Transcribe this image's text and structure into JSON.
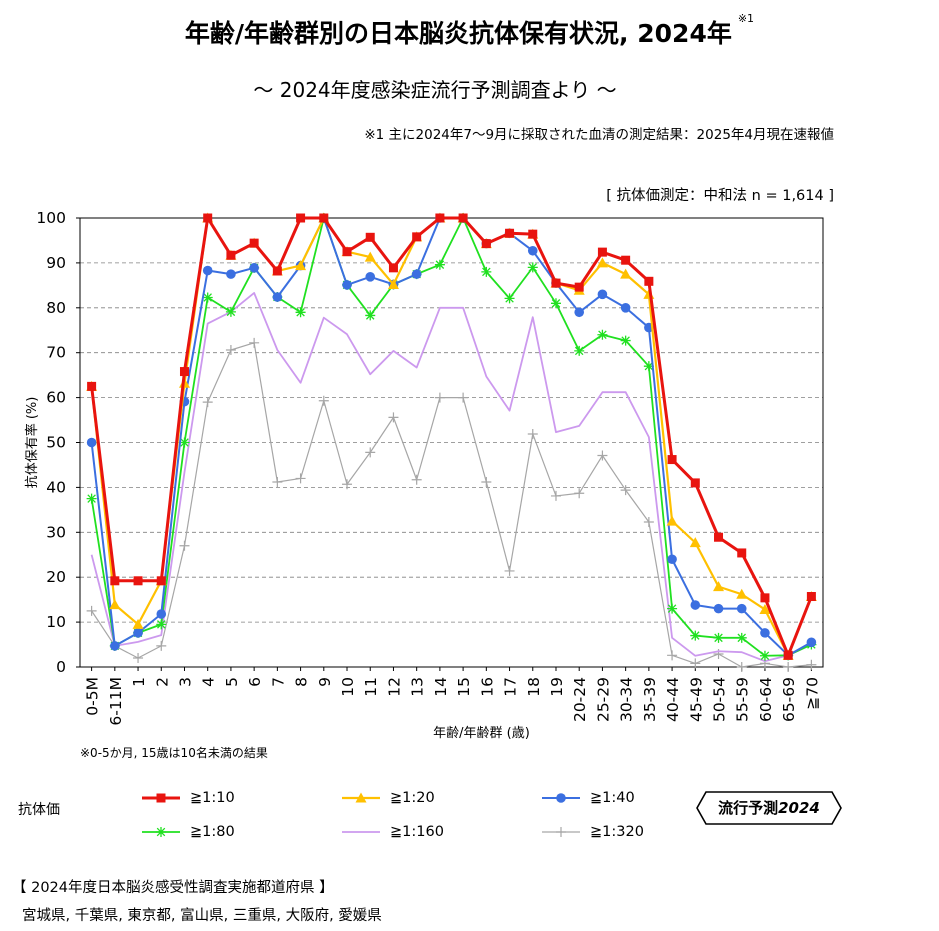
{
  "header": {
    "title": "年齢/年齢群別の日本脳炎抗体保有状況, 2024年",
    "title_note_mark": "※1",
    "subtitle": "～ 2024年度感染症流行予測調査より ～",
    "footnote": "※1  主に2024年7～9月に採取された血清の測定結果：2025年4月現在速報値",
    "measurement": "[ 抗体価測定：中和法 n = 1,614 ]"
  },
  "notes": {
    "under5": "※0-5か月, 15歳は10名未満の結果"
  },
  "legend": {
    "title": "抗体価"
  },
  "badge": {
    "prefix": "流行予測",
    "year": "2024"
  },
  "survey": {
    "title": "【 2024年度日本脳炎感受性調査実施都道府県 】",
    "prefectures": "宮城県,  千葉県,  東京都,  富山県,  三重県,  大阪府,  愛媛県"
  },
  "chart_data": {
    "type": "line",
    "title": "年齢/年齢群別の日本脳炎抗体保有状況, 2024年",
    "xlabel": "年齢/年齢群 (歳)",
    "ylabel": "抗体保有率 (%)",
    "ylim": [
      0,
      100
    ],
    "yticks": [
      0,
      10,
      20,
      30,
      40,
      50,
      60,
      70,
      80,
      90,
      100
    ],
    "grid": true,
    "categories": [
      "0-5M",
      "6-11M",
      "1",
      "2",
      "3",
      "4",
      "5",
      "6",
      "7",
      "8",
      "9",
      "10",
      "11",
      "12",
      "13",
      "14",
      "15",
      "16",
      "17",
      "18",
      "19",
      "20-24",
      "25-29",
      "30-34",
      "35-39",
      "40-44",
      "45-49",
      "50-54",
      "55-59",
      "60-64",
      "65-69",
      "≧70"
    ],
    "series": [
      {
        "name": "≧1:10",
        "color": "#e8140f",
        "marker": "square",
        "values": [
          62.5,
          19.2,
          19.2,
          19.2,
          65.8,
          100,
          91.7,
          94.4,
          88.2,
          100,
          100,
          92.5,
          95.7,
          88.9,
          95.8,
          100,
          100,
          94.3,
          96.6,
          96.4,
          85.5,
          84.6,
          92.4,
          90.6,
          85.9,
          46.2,
          41.0,
          28.9,
          25.4,
          15.4,
          2.6,
          15.7
        ]
      },
      {
        "name": "≧1:20",
        "color": "#ffc000",
        "marker": "triangle",
        "values": [
          62.5,
          13.9,
          9.5,
          19.2,
          63.2,
          100,
          91.7,
          94.4,
          88.2,
          89.4,
          100,
          92.5,
          91.3,
          85.2,
          95.8,
          100,
          100,
          94.3,
          96.6,
          96.4,
          85.5,
          83.9,
          90.0,
          87.5,
          83.0,
          32.5,
          27.7,
          17.9,
          16.2,
          12.8,
          2.6,
          15.7
        ]
      },
      {
        "name": "≧1:40",
        "color": "#3b6fe0",
        "marker": "circle",
        "values": [
          50.0,
          4.7,
          7.6,
          11.8,
          59.1,
          88.3,
          87.5,
          88.9,
          82.4,
          89.4,
          100,
          85.1,
          86.9,
          85.2,
          87.5,
          100,
          100,
          94.3,
          96.6,
          92.7,
          85.5,
          79.0,
          83.0,
          80.0,
          75.6,
          24.0,
          13.8,
          13.0,
          13.0,
          7.6,
          2.6,
          5.5
        ]
      },
      {
        "name": "≧1:80",
        "color": "#20e020",
        "marker": "star",
        "values": [
          37.5,
          4.7,
          7.6,
          9.5,
          50.0,
          82.3,
          79.1,
          88.9,
          82.4,
          79.0,
          100,
          85.1,
          78.3,
          85.2,
          87.5,
          89.6,
          100,
          88.0,
          82.1,
          89.0,
          81.0,
          70.4,
          74.0,
          72.7,
          67.0,
          13.0,
          7.0,
          6.5,
          6.5,
          2.5,
          2.6,
          5.0
        ]
      },
      {
        "name": "≧1:160",
        "color": "#cc99ee",
        "marker": "none",
        "values": [
          25.0,
          4.7,
          5.6,
          7.1,
          43.4,
          76.5,
          79.1,
          83.3,
          70.6,
          63.3,
          77.8,
          74.1,
          65.2,
          70.4,
          66.7,
          80.0,
          80.0,
          64.7,
          57.1,
          77.9,
          52.3,
          53.7,
          61.2,
          61.2,
          51.2,
          6.5,
          2.5,
          3.5,
          3.3,
          1.3,
          2.6,
          5.0
        ]
      },
      {
        "name": "≧1:320",
        "color": "#a6a6a6",
        "marker": "plus",
        "values": [
          12.5,
          4.7,
          2.0,
          4.7,
          27.0,
          59.0,
          70.6,
          72.2,
          41.2,
          42.0,
          59.3,
          40.7,
          47.8,
          55.6,
          41.7,
          60.0,
          60.0,
          41.2,
          21.4,
          51.9,
          38.1,
          38.7,
          47.1,
          39.4,
          32.3,
          2.6,
          0.8,
          2.9,
          0.0,
          0.8,
          0.0,
          0.5
        ]
      }
    ]
  }
}
